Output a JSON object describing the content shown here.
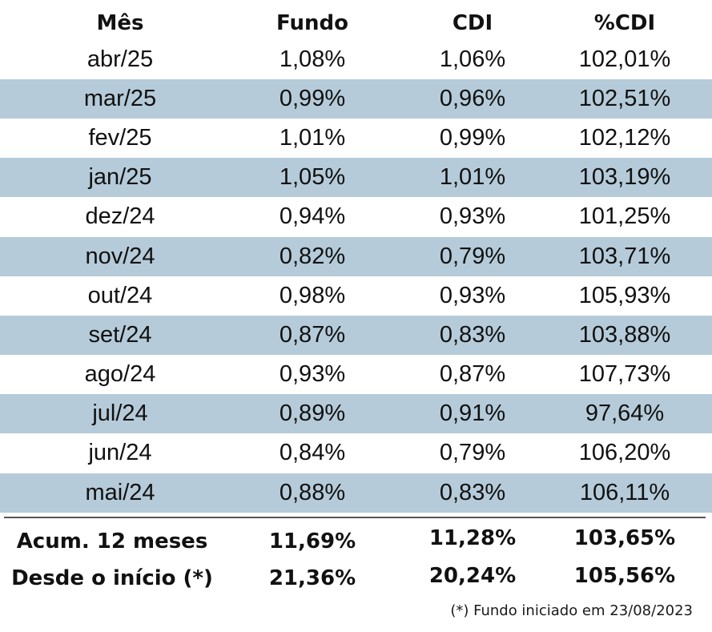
{
  "table": {
    "headers": [
      "Mês",
      "Fundo",
      "CDI",
      "%CDI"
    ],
    "rows": [
      [
        "abr/25",
        "1,08%",
        "1,06%",
        "102,01%"
      ],
      [
        "mar/25",
        "0,99%",
        "0,96%",
        "102,51%"
      ],
      [
        "fev/25",
        "1,01%",
        "0,99%",
        "102,12%"
      ],
      [
        "jan/25",
        "1,05%",
        "1,01%",
        "103,19%"
      ],
      [
        "dez/24",
        "0,94%",
        "0,93%",
        "101,25%"
      ],
      [
        "nov/24",
        "0,82%",
        "0,79%",
        "103,71%"
      ],
      [
        "out/24",
        "0,98%",
        "0,93%",
        "105,93%"
      ],
      [
        "set/24",
        "0,87%",
        "0,83%",
        "103,88%"
      ],
      [
        "ago/24",
        "0,93%",
        "0,87%",
        "107,73%"
      ],
      [
        "jul/24",
        "0,89%",
        "0,91%",
        "97,64%"
      ],
      [
        "jun/24",
        "0,84%",
        "0,79%",
        "106,20%"
      ],
      [
        "mai/24",
        "0,88%",
        "0,83%",
        "106,11%"
      ]
    ],
    "summary": [
      [
        "Acum. 12 meses",
        "11,69%",
        "11,28%",
        "103,65%"
      ],
      [
        "Desde o início (*)",
        "21,36%",
        "20,24%",
        "105,56%"
      ]
    ]
  },
  "footnote": "(*) Fundo iniciado em 23/08/2023",
  "colors": {
    "row_shade": "#b5cbd9",
    "text": "#111111"
  }
}
